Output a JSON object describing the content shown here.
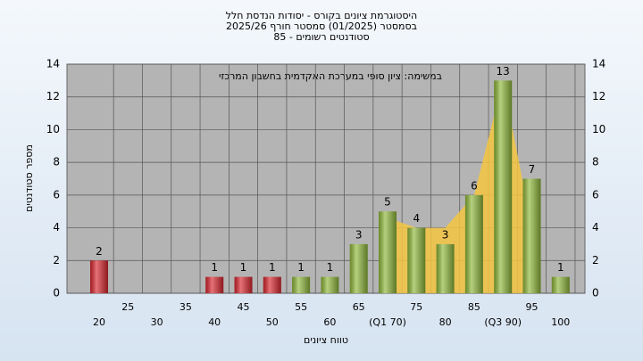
{
  "chart_data": {
    "type": "bar",
    "title": [
      "היסטוגרמת ציונים בקורס - יסודות הנדסת חלל",
      "בסמסטר  (01/2025)  סמסטר חורף 2025/26",
      "סטודנטים רשומים - 85"
    ],
    "annotation": "במשימה: ציון סופי במערכת האקדמית בחשבון המרכזי",
    "x_label": "טווח ציונים",
    "y_label": "מספר סטודנטים",
    "categories": [
      "20",
      "25",
      "30",
      "35",
      "40",
      "45",
      "50",
      "55",
      "60",
      "65",
      "(Q1 70)",
      "75",
      "80",
      "85",
      "(Q3 90)",
      "95",
      "100"
    ],
    "values": [
      2,
      0,
      0,
      0,
      1,
      1,
      1,
      1,
      1,
      3,
      5,
      4,
      3,
      6,
      13,
      7,
      1
    ],
    "colors": [
      "#d9262e",
      "#d9262e",
      "#d9262e",
      "#d9262e",
      "#d9262e",
      "#d9262e",
      "#d9262e",
      "#8fb83a",
      "#8fb83a",
      "#8fb83a",
      "#8fb83a",
      "#8fb83a",
      "#8fb83a",
      "#8fb83a",
      "#8fb83a",
      "#8fb83a",
      "#8fb83a"
    ],
    "area": {
      "color": "#f5c542",
      "values": [
        null,
        null,
        null,
        null,
        null,
        null,
        null,
        null,
        null,
        null,
        4.6,
        4,
        4,
        6,
        13,
        4,
        null
      ]
    },
    "ylim": [
      0,
      14
    ],
    "yticks": [
      0,
      2,
      4,
      6,
      8,
      10,
      12,
      14
    ],
    "grid": true
  }
}
